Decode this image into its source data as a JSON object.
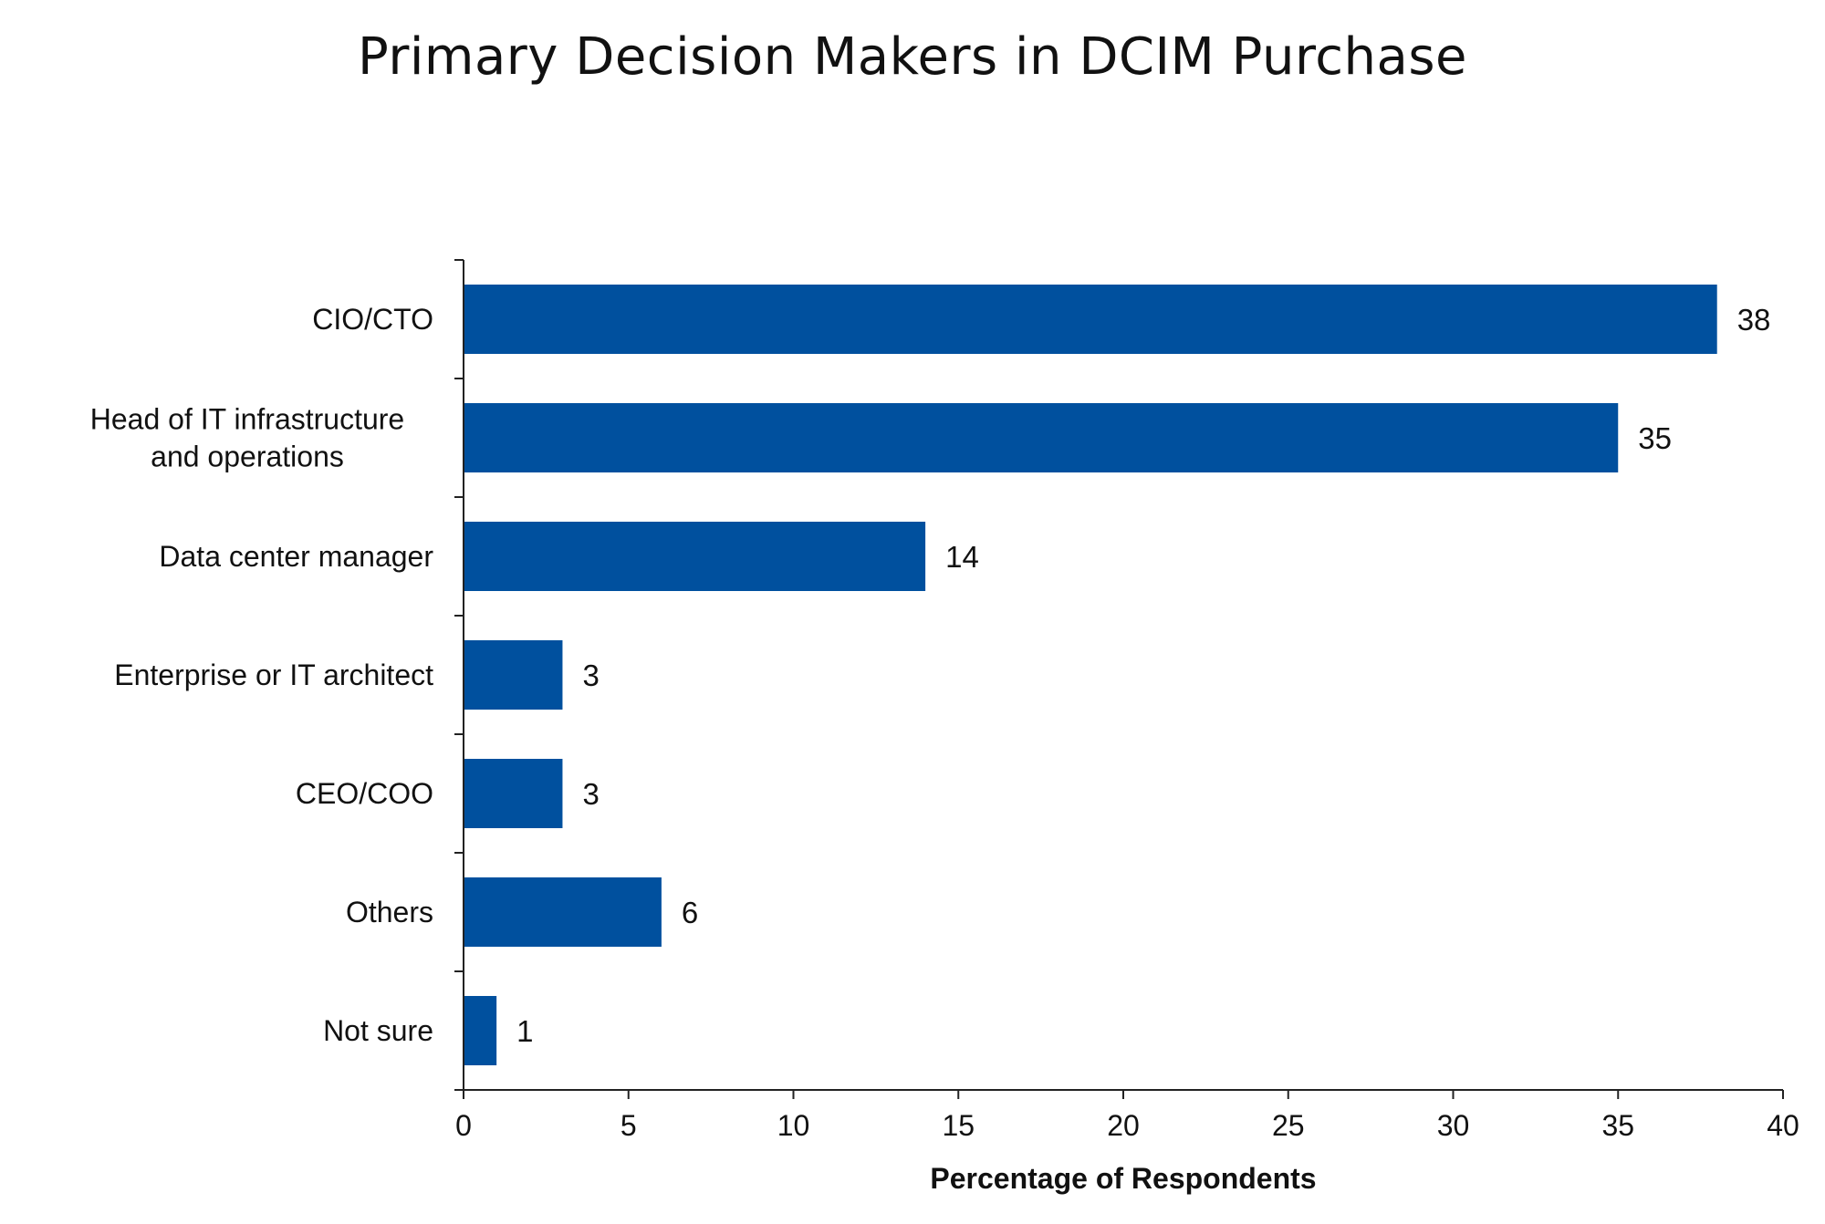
{
  "chart_data": {
    "type": "bar",
    "orientation": "horizontal",
    "title": "Primary Decision Makers in DCIM Purchase",
    "xlabel": "Percentage of Respondents",
    "ylabel": "",
    "categories": [
      "CIO/CTO",
      "Head of IT infrastructure and operations",
      "Data center manager",
      "Enterprise or IT architect",
      "CEO/COO",
      "Others",
      "Not sure"
    ],
    "category_lines": [
      [
        "CIO/CTO"
      ],
      [
        "Head of IT infrastructure",
        "and operations"
      ],
      [
        "Data center manager"
      ],
      [
        "Enterprise or IT architect"
      ],
      [
        "CEO/COO"
      ],
      [
        "Others"
      ],
      [
        "Not sure"
      ]
    ],
    "values": [
      38,
      35,
      14,
      3,
      3,
      6,
      1
    ],
    "data_labels": [
      "38",
      "35",
      "14",
      "3",
      "3",
      "6",
      "1"
    ],
    "xlim": [
      0,
      40
    ],
    "xticks": [
      0,
      5,
      10,
      15,
      20,
      25,
      30,
      35,
      40
    ],
    "xtick_labels": [
      "0",
      "5",
      "10",
      "15",
      "20",
      "25",
      "30",
      "35",
      "40"
    ],
    "grid": false,
    "legend": "none",
    "bar_color": "#00509e"
  }
}
